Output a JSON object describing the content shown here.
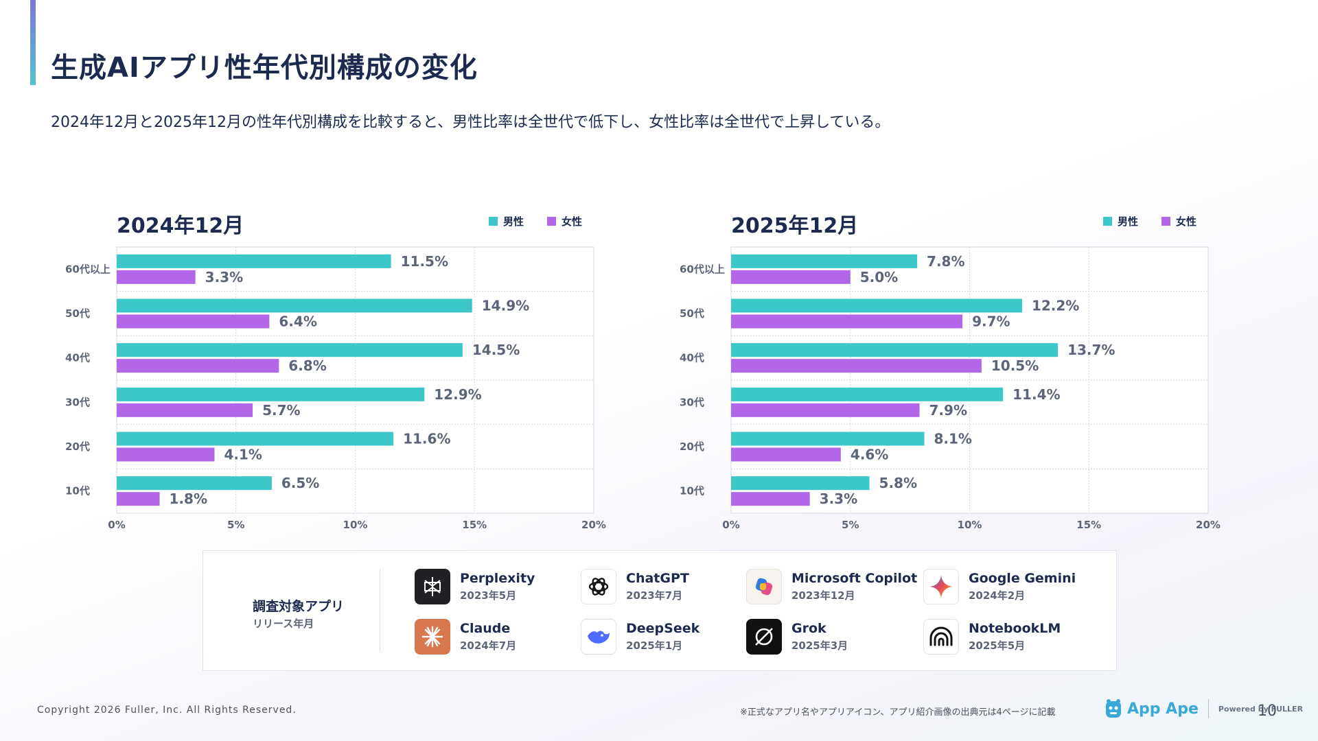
{
  "slide": {
    "title": "生成AIアプリ性年代別構成の変化",
    "subtitle": "2024年12月と2025年12月の性年代別構成を比較すると、男性比率は全世代で低下し、女性比率は全世代で上昇している。"
  },
  "colors": {
    "male": "#3cc8c8",
    "female": "#b266e8"
  },
  "chart_data": [
    {
      "type": "bar",
      "orientation": "horizontal",
      "title": "2024年12月",
      "categories": [
        "60代以上",
        "50代",
        "40代",
        "30代",
        "20代",
        "10代"
      ],
      "series": [
        {
          "name": "男性",
          "values": [
            11.5,
            14.9,
            14.5,
            12.9,
            11.6,
            6.5
          ]
        },
        {
          "name": "女性",
          "values": [
            3.3,
            6.4,
            6.8,
            5.7,
            4.1,
            1.8
          ]
        }
      ],
      "xlim": [
        0,
        20
      ],
      "xticks": [
        "0%",
        "5%",
        "10%",
        "15%",
        "20%"
      ],
      "legend_position": "top-right",
      "grid": true
    },
    {
      "type": "bar",
      "orientation": "horizontal",
      "title": "2025年12月",
      "categories": [
        "60代以上",
        "50代",
        "40代",
        "30代",
        "20代",
        "10代"
      ],
      "series": [
        {
          "name": "男性",
          "values": [
            7.8,
            12.2,
            13.7,
            11.4,
            8.1,
            5.8
          ]
        },
        {
          "name": "女性",
          "values": [
            5.0,
            9.7,
            10.5,
            7.9,
            4.6,
            3.3
          ]
        }
      ],
      "xlim": [
        0,
        20
      ],
      "xticks": [
        "0%",
        "5%",
        "10%",
        "15%",
        "20%"
      ],
      "legend_position": "top-right",
      "grid": true
    }
  ],
  "apps_panel": {
    "heading": "調査対象アプリ",
    "subheading": "リリース年月",
    "apps": [
      {
        "name": "Perplexity",
        "date": "2023年5月",
        "icon": "perplexity-icon"
      },
      {
        "name": "ChatGPT",
        "date": "2023年7月",
        "icon": "chatgpt-icon"
      },
      {
        "name": "Microsoft Copilot",
        "date": "2023年12月",
        "icon": "copilot-icon"
      },
      {
        "name": "Google Gemini",
        "date": "2024年2月",
        "icon": "gemini-icon"
      },
      {
        "name": "Claude",
        "date": "2024年7月",
        "icon": "claude-icon"
      },
      {
        "name": "DeepSeek",
        "date": "2025年1月",
        "icon": "deepseek-icon"
      },
      {
        "name": "Grok",
        "date": "2025年3月",
        "icon": "grok-icon"
      },
      {
        "name": "NotebookLM",
        "date": "2025年5月",
        "icon": "notebooklm-icon"
      }
    ]
  },
  "footer": {
    "copyright": "Copyright 2026 Fuller, Inc. All Rights Reserved.",
    "note": "※正式なアプリ名やアプリアイコン、アプリ紹介画像の出典元は4ページに記載",
    "brand": "App Ape",
    "powered": "Powered by FULLER",
    "page_number": "10"
  }
}
